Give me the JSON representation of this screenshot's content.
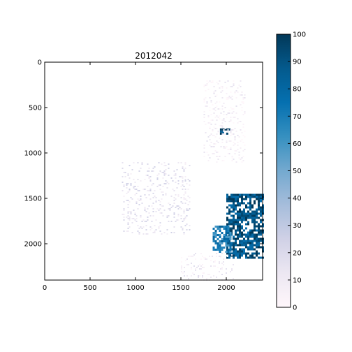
{
  "chart_data": [
    {
      "type": "heatmap",
      "title": "2012042",
      "xlabel": "",
      "ylabel": "",
      "xlim": [
        0,
        2400
      ],
      "ylim": [
        2400,
        0
      ],
      "x_ticks": [
        0,
        500,
        1000,
        1500,
        2000
      ],
      "y_ticks": [
        0,
        500,
        1000,
        1500,
        2000
      ],
      "grid": false,
      "colormap": "PuBu",
      "value_range": [
        0,
        100
      ],
      "regions": [
        {
          "label": "dense-lower-right",
          "x_range": [
            2000,
            2400
          ],
          "y_range": [
            1450,
            2150
          ],
          "value": 90
        },
        {
          "label": "fringe-lower-right",
          "x_range": [
            1850,
            2050
          ],
          "y_range": [
            1800,
            2100
          ],
          "value": 70
        },
        {
          "label": "patch-near-2000-750",
          "x_range": [
            1930,
            2030
          ],
          "y_range": [
            730,
            790
          ],
          "value": 95
        },
        {
          "label": "sparse-central",
          "x_range": [
            850,
            1600
          ],
          "y_range": [
            1100,
            1900
          ],
          "value": 15
        },
        {
          "label": "scattered-low-bottom",
          "x_range": [
            1500,
            2100
          ],
          "y_range": [
            2100,
            2400
          ],
          "value": 8
        },
        {
          "label": "faint-upper-right",
          "x_range": [
            1750,
            2200
          ],
          "y_range": [
            200,
            1100
          ],
          "value": 6
        }
      ]
    },
    {
      "type": "colorbar",
      "ticks": [
        0,
        10,
        20,
        30,
        40,
        50,
        60,
        70,
        80,
        90,
        100
      ],
      "range": [
        0,
        100
      ],
      "colormap": "PuBu"
    }
  ],
  "colors": {
    "low": "#fff7fb",
    "mid_low": "#d0d1e6",
    "mid": "#74a9cf",
    "high": "#0570b0",
    "max": "#023858"
  }
}
